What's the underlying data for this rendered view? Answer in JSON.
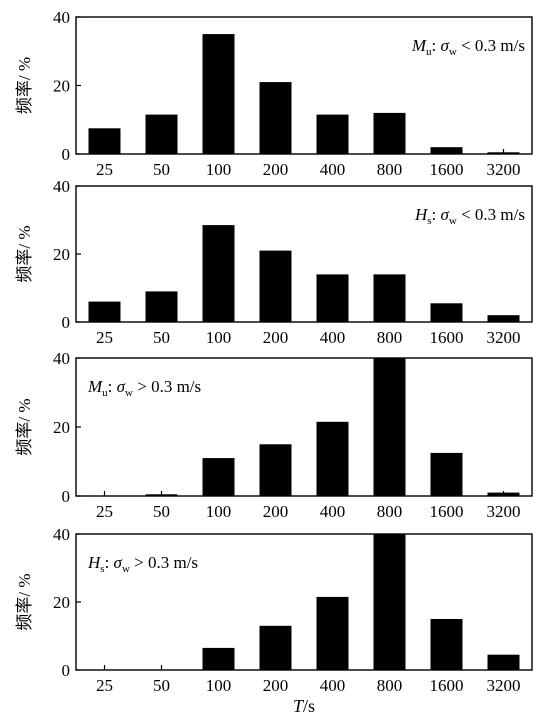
{
  "chart_data": [
    {
      "type": "bar",
      "categories": [
        "25",
        "50",
        "100",
        "200",
        "400",
        "800",
        "1600",
        "3200"
      ],
      "values": [
        7.5,
        11.5,
        35,
        21,
        11.5,
        12,
        2,
        0.5
      ],
      "ylabel": "频率/ %",
      "ylim": [
        0,
        40
      ],
      "yticks": [
        "0",
        "20",
        "40"
      ],
      "annotation": {
        "var": "M",
        "sub": "u",
        "rest": ": ",
        "sigma": "σ",
        "sigma_sub": "w",
        "cond": " < 0.3 m/s"
      },
      "annotation_position": "top-right",
      "bar_color": "#000000"
    },
    {
      "type": "bar",
      "categories": [
        "25",
        "50",
        "100",
        "200",
        "400",
        "800",
        "1600",
        "3200"
      ],
      "values": [
        6,
        9,
        28.5,
        21,
        14,
        14,
        5.5,
        2
      ],
      "ylabel": "频率/ %",
      "ylim": [
        0,
        40
      ],
      "yticks": [
        "0",
        "20",
        "40"
      ],
      "annotation": {
        "var": "H",
        "sub": "s",
        "rest": ": ",
        "sigma": "σ",
        "sigma_sub": "w",
        "cond": " < 0.3 m/s"
      },
      "annotation_position": "top-right",
      "bar_color": "#000000"
    },
    {
      "type": "bar",
      "categories": [
        "25",
        "50",
        "100",
        "200",
        "400",
        "800",
        "1600",
        "3200"
      ],
      "values": [
        0,
        0.5,
        11,
        15,
        21.5,
        40,
        12.5,
        1
      ],
      "ylabel": "频率/ %",
      "ylim": [
        0,
        40
      ],
      "yticks": [
        "0",
        "20",
        "40"
      ],
      "annotation": {
        "var": "M",
        "sub": "u",
        "rest": ": ",
        "sigma": "σ",
        "sigma_sub": "w",
        "cond": " > 0.3 m/s"
      },
      "annotation_position": "top-left",
      "bar_color": "#000000"
    },
    {
      "type": "bar",
      "categories": [
        "25",
        "50",
        "100",
        "200",
        "400",
        "800",
        "1600",
        "3200"
      ],
      "values": [
        0,
        0,
        6.5,
        13,
        21.5,
        40,
        15,
        4.5
      ],
      "ylabel": "频率/ %",
      "ylim": [
        0,
        40
      ],
      "yticks": [
        "0",
        "20",
        "40"
      ],
      "annotation": {
        "var": "H",
        "sub": "s",
        "rest": ": ",
        "sigma": "σ",
        "sigma_sub": "w",
        "cond": " > 0.3 m/s"
      },
      "annotation_position": "top-left",
      "bar_color": "#000000"
    }
  ],
  "xlabel": {
    "var": "T",
    "unit": "/s"
  }
}
